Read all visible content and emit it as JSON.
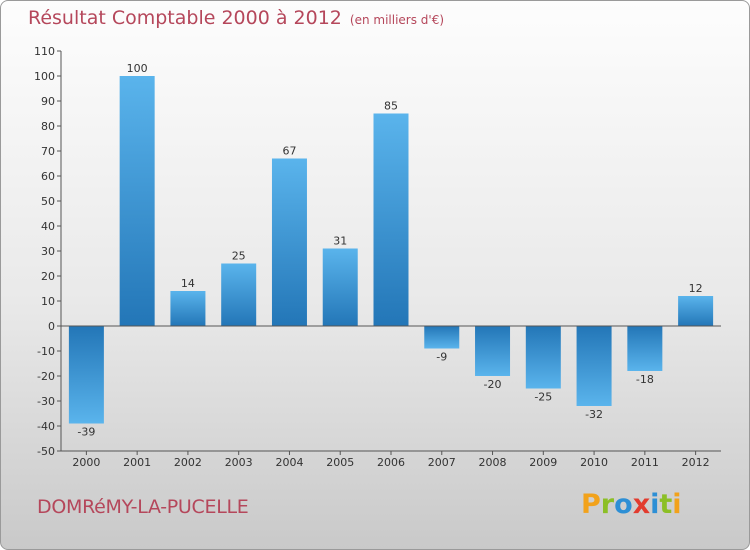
{
  "chart_data": {
    "type": "bar",
    "title": "Résultat Comptable 2000 à 2012",
    "subtitle": "(en milliers d'€)",
    "categories": [
      "2000",
      "2001",
      "2002",
      "2003",
      "2004",
      "2005",
      "2006",
      "2007",
      "2008",
      "2009",
      "2010",
      "2011",
      "2012"
    ],
    "values": [
      -39,
      100,
      14,
      25,
      67,
      31,
      85,
      -9,
      -20,
      -25,
      -32,
      -18,
      12
    ],
    "data_labels": [
      "-39",
      "100",
      "14",
      "25",
      "67",
      "31",
      "85",
      "-9",
      "-20",
      "-25",
      "-32",
      "-18",
      "12"
    ],
    "xlabel": "",
    "ylabel": "",
    "ylim": [
      -50,
      110
    ],
    "yticks": [
      "-50",
      "-40",
      "-30",
      "-20",
      "-10",
      "0",
      "10",
      "20",
      "30",
      "40",
      "50",
      "60",
      "70",
      "80",
      "90",
      "100",
      "110"
    ],
    "grid": false,
    "colors": {
      "bar_dark": "#2376b7",
      "bar_light": "#5ab4ec",
      "title": "#b5475b",
      "axis": "#555555"
    }
  },
  "footer": {
    "commune": "DOMRéMY-LA-PUCELLE",
    "logo": [
      "P",
      "r",
      "o",
      "x",
      "i",
      "t",
      "i"
    ],
    "logo_colors": [
      "#f2a21b",
      "#8cbf26",
      "#2d8fd5",
      "#e23b2e",
      "#2d8fd5",
      "#8cbf26",
      "#f2a21b"
    ]
  }
}
